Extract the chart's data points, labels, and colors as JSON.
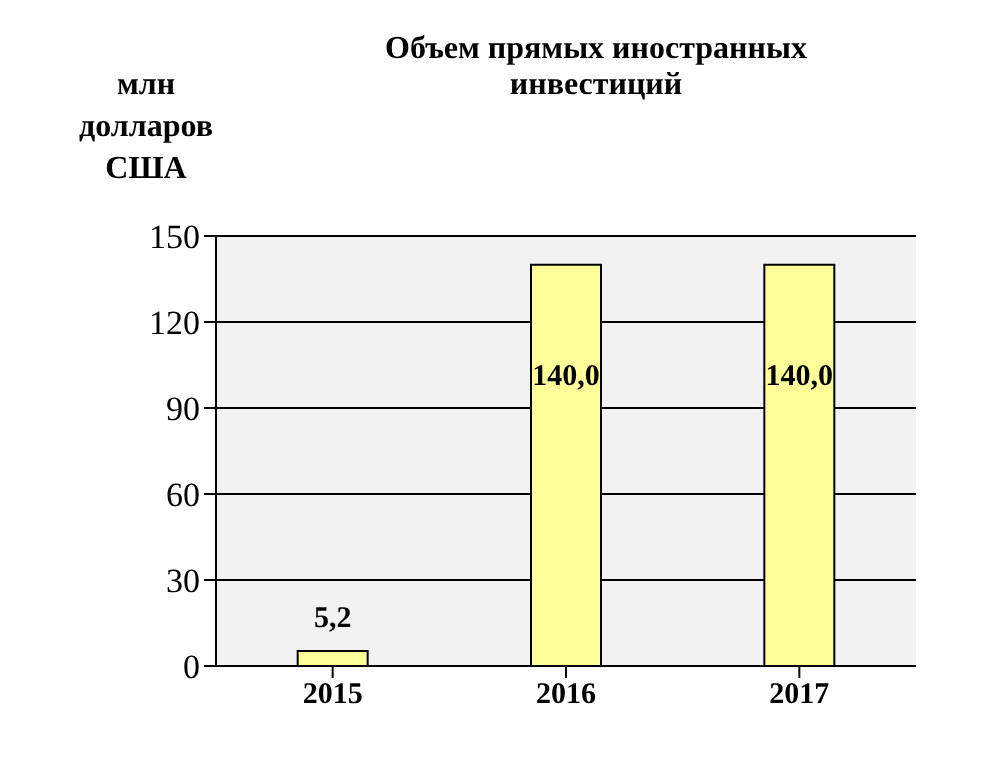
{
  "chart_data": {
    "type": "bar",
    "title": "Объем прямых иностранных инвестиций",
    "ylabel": "млн долларов США",
    "categories": [
      "2015",
      "2016",
      "2017"
    ],
    "values": [
      5.2,
      140,
      140
    ],
    "value_labels": [
      "5,2",
      "140,0",
      "140,0"
    ],
    "color": "#ffff99",
    "ylim": [
      0,
      150
    ],
    "yticks": [
      0,
      30,
      60,
      90,
      120,
      150
    ],
    "grid": "y"
  }
}
